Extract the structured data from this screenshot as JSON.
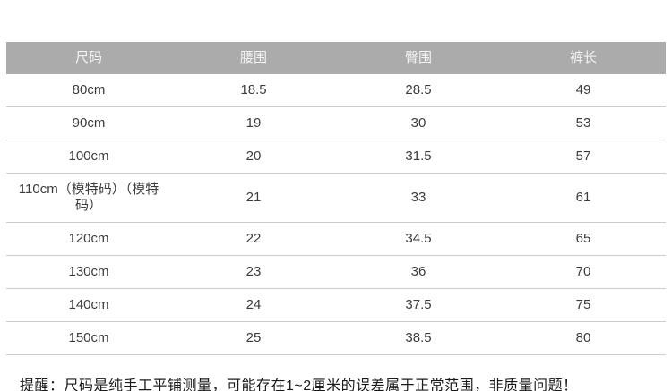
{
  "chart_data": {
    "type": "table",
    "title": "",
    "columns": [
      "尺码",
      "腰围",
      "臀围",
      "裤长"
    ],
    "rows": [
      [
        "80cm",
        "18.5",
        "28.5",
        "49"
      ],
      [
        "90cm",
        "19",
        "30",
        "53"
      ],
      [
        "100cm",
        "20",
        "31.5",
        "57"
      ],
      [
        "110cm（模特码）（模特码）",
        "21",
        "33",
        "61"
      ],
      [
        "120cm",
        "22",
        "34.5",
        "65"
      ],
      [
        "130cm",
        "23",
        "36",
        "70"
      ],
      [
        "140cm",
        "24",
        "37.5",
        "75"
      ],
      [
        "150cm",
        "25",
        "38.5",
        "80"
      ]
    ],
    "layout_hints": {
      "header_style": "gray-bar-white-text",
      "grid": "horizontal-rules-only",
      "cell_alignment": "center"
    }
  },
  "note": {
    "text": "提醒：尺码是纯手工平铺测量，可能存在1~2厘米的误差属于正常范围，非质量问题！"
  },
  "colors": {
    "header_bg": "#ababab",
    "header_text": "#f2f2f2",
    "body_text": "#3c3c3c",
    "row_border": "#cccccc",
    "note_text": "#1a1a1a",
    "page_bg": "#ffffff"
  }
}
